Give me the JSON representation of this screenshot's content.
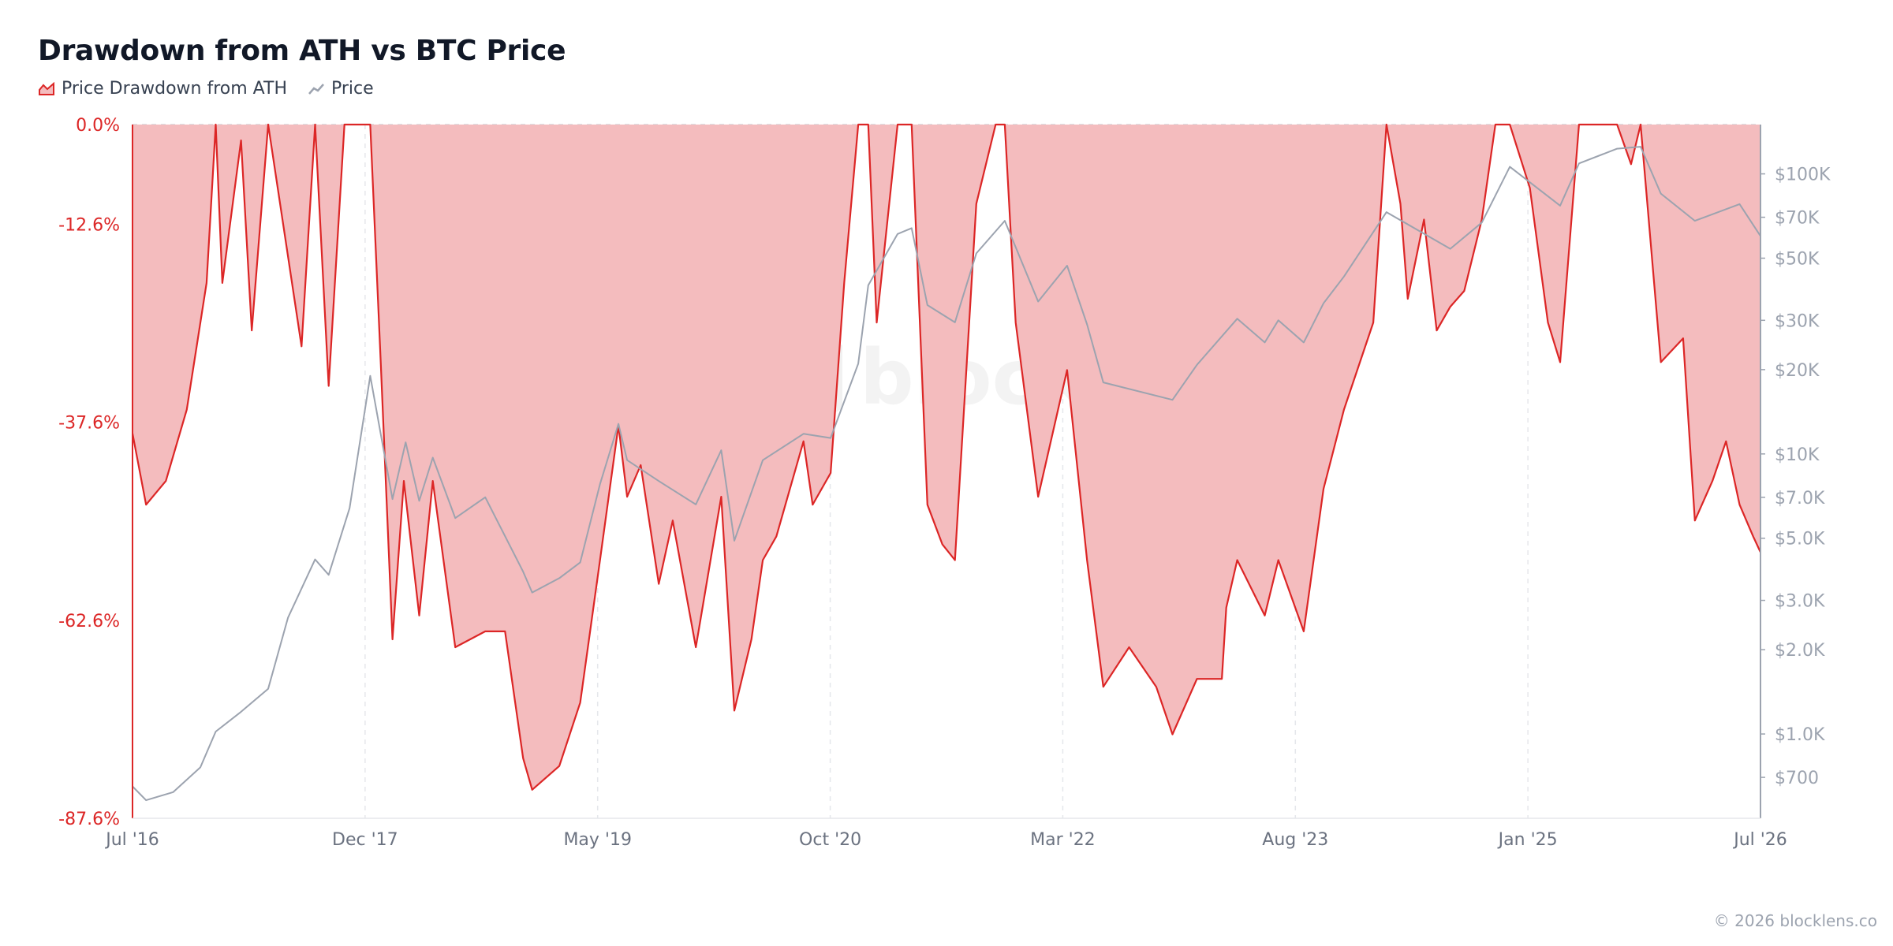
{
  "title": "Drawdown from ATH vs BTC Price",
  "legend": [
    {
      "label": "Price Drawdown from ATH",
      "icon": "area-chart-icon",
      "color": "#dc2626"
    },
    {
      "label": "Price",
      "icon": "line-chart-icon",
      "color": "#9ca3af"
    }
  ],
  "watermark": "blocklens",
  "footer": "© 2026 blocklens.co",
  "chart_data": {
    "type": "area",
    "x_axis": {
      "type": "date",
      "range": [
        "2016-07",
        "2026-07"
      ],
      "ticks": [
        "Jul '16",
        "Dec '17",
        "May '19",
        "Oct '20",
        "Mar '22",
        "Aug '23",
        "Jan '25",
        "Jul '26"
      ]
    },
    "y_left": {
      "label": "",
      "unit": "%",
      "range": [
        -87.6,
        0
      ],
      "ticks": [
        "0.0%",
        "-12.6%",
        "-37.6%",
        "-62.6%",
        "-87.6%"
      ],
      "tick_values": [
        0,
        -12.6,
        -37.6,
        -62.6,
        -87.6
      ]
    },
    "y_right": {
      "label": "",
      "scale": "log",
      "range": [
        500,
        150000
      ],
      "ticks": [
        "$100K",
        "$70K",
        "$50K",
        "$30K",
        "$20K",
        "$10K",
        "$7.0K",
        "$5.0K",
        "$3.0K",
        "$2.0K",
        "$1.0K",
        "$700"
      ],
      "tick_values": [
        100000,
        70000,
        50000,
        30000,
        20000,
        10000,
        7000,
        5000,
        3000,
        2000,
        1000,
        700
      ]
    },
    "grid": {
      "vertical": true,
      "horizontal": false
    },
    "series": [
      {
        "name": "Price Drawdown from ATH",
        "type": "area",
        "axis": "left",
        "color": "#dc2626",
        "fill": "#f4bcbe",
        "points": [
          [
            "2016-07-01",
            -39
          ],
          [
            "2016-08-01",
            -48
          ],
          [
            "2016-09-15",
            -45
          ],
          [
            "2016-11-01",
            -36
          ],
          [
            "2016-12-15",
            -20
          ],
          [
            "2017-01-05",
            0
          ],
          [
            "2017-01-20",
            -20
          ],
          [
            "2017-03-01",
            -2
          ],
          [
            "2017-03-25",
            -26
          ],
          [
            "2017-05-01",
            0
          ],
          [
            "2017-07-15",
            -28
          ],
          [
            "2017-08-15",
            0
          ],
          [
            "2017-09-15",
            -33
          ],
          [
            "2017-10-20",
            0
          ],
          [
            "2017-12-17",
            0
          ],
          [
            "2018-01-10",
            -30
          ],
          [
            "2018-02-06",
            -65
          ],
          [
            "2018-03-01",
            -45
          ],
          [
            "2018-04-05",
            -62
          ],
          [
            "2018-05-05",
            -45
          ],
          [
            "2018-06-25",
            -66
          ],
          [
            "2018-09-01",
            -64
          ],
          [
            "2018-10-15",
            -64
          ],
          [
            "2018-11-25",
            -80
          ],
          [
            "2018-12-15",
            -84
          ],
          [
            "2019-02-15",
            -81
          ],
          [
            "2019-04-01",
            -73
          ],
          [
            "2019-05-15",
            -55
          ],
          [
            "2019-06-26",
            -38
          ],
          [
            "2019-07-15",
            -47
          ],
          [
            "2019-08-15",
            -43
          ],
          [
            "2019-09-25",
            -58
          ],
          [
            "2019-10-26",
            -50
          ],
          [
            "2019-12-17",
            -66
          ],
          [
            "2020-02-13",
            -47
          ],
          [
            "2020-03-12",
            -74
          ],
          [
            "2020-04-20",
            -65
          ],
          [
            "2020-05-15",
            -55
          ],
          [
            "2020-06-15",
            -52
          ],
          [
            "2020-08-15",
            -40
          ],
          [
            "2020-09-05",
            -48
          ],
          [
            "2020-10-15",
            -44
          ],
          [
            "2020-11-15",
            -20
          ],
          [
            "2020-12-16",
            0
          ],
          [
            "2021-01-08",
            0
          ],
          [
            "2021-01-27",
            -25
          ],
          [
            "2021-03-13",
            0
          ],
          [
            "2021-04-14",
            0
          ],
          [
            "2021-05-19",
            -48
          ],
          [
            "2021-06-22",
            -53
          ],
          [
            "2021-07-20",
            -55
          ],
          [
            "2021-09-07",
            -10
          ],
          [
            "2021-10-20",
            0
          ],
          [
            "2021-11-10",
            0
          ],
          [
            "2021-12-04",
            -25
          ],
          [
            "2022-01-24",
            -47
          ],
          [
            "2022-03-28",
            -31
          ],
          [
            "2022-05-12",
            -55
          ],
          [
            "2022-06-18",
            -71
          ],
          [
            "2022-08-15",
            -66
          ],
          [
            "2022-10-15",
            -71
          ],
          [
            "2022-11-21",
            -77
          ],
          [
            "2023-01-15",
            -70
          ],
          [
            "2023-03-10",
            -70
          ],
          [
            "2023-03-20",
            -61
          ],
          [
            "2023-04-14",
            -55
          ],
          [
            "2023-06-15",
            -62
          ],
          [
            "2023-07-15",
            -55
          ],
          [
            "2023-09-11",
            -64
          ],
          [
            "2023-10-25",
            -46
          ],
          [
            "2023-12-10",
            -36
          ],
          [
            "2024-02-15",
            -25
          ],
          [
            "2024-03-14",
            0
          ],
          [
            "2024-04-15",
            -10
          ],
          [
            "2024-05-01",
            -22
          ],
          [
            "2024-06-07",
            -12
          ],
          [
            "2024-07-05",
            -26
          ],
          [
            "2024-08-05",
            -23
          ],
          [
            "2024-09-06",
            -21
          ],
          [
            "2024-10-15",
            -12
          ],
          [
            "2024-11-15",
            0
          ],
          [
            "2024-12-17",
            0
          ],
          [
            "2025-02-01",
            -8
          ],
          [
            "2025-03-11",
            -25
          ],
          [
            "2025-04-08",
            -30
          ],
          [
            "2025-05-20",
            0
          ],
          [
            "2025-08-14",
            0
          ],
          [
            "2025-09-15",
            -5
          ],
          [
            "2025-10-06",
            0
          ],
          [
            "2025-11-21",
            -30
          ],
          [
            "2026-01-10",
            -27
          ],
          [
            "2026-02-06",
            -50
          ],
          [
            "2026-03-15",
            -45
          ],
          [
            "2026-04-15",
            -40
          ],
          [
            "2026-05-15",
            -48
          ],
          [
            "2026-06-15",
            -52
          ],
          [
            "2026-07-01",
            -54
          ]
        ]
      },
      {
        "name": "Price",
        "type": "line",
        "axis": "right",
        "color": "#9ca3af",
        "scale": "log",
        "points": [
          [
            "2016-07-01",
            650
          ],
          [
            "2016-08-01",
            580
          ],
          [
            "2016-10-01",
            620
          ],
          [
            "2016-12-01",
            760
          ],
          [
            "2017-01-05",
            1020
          ],
          [
            "2017-03-01",
            1200
          ],
          [
            "2017-05-01",
            1450
          ],
          [
            "2017-06-15",
            2600
          ],
          [
            "2017-08-15",
            4200
          ],
          [
            "2017-09-15",
            3700
          ],
          [
            "2017-11-01",
            6400
          ],
          [
            "2017-12-17",
            19000
          ],
          [
            "2018-02-06",
            6900
          ],
          [
            "2018-03-05",
            11000
          ],
          [
            "2018-04-05",
            6800
          ],
          [
            "2018-05-05",
            9700
          ],
          [
            "2018-06-25",
            5900
          ],
          [
            "2018-09-01",
            7000
          ],
          [
            "2018-11-25",
            3800
          ],
          [
            "2018-12-15",
            3200
          ],
          [
            "2019-02-15",
            3600
          ],
          [
            "2019-04-01",
            4100
          ],
          [
            "2019-05-15",
            7800
          ],
          [
            "2019-06-26",
            12800
          ],
          [
            "2019-07-15",
            9500
          ],
          [
            "2019-09-25",
            8000
          ],
          [
            "2019-12-17",
            6600
          ],
          [
            "2020-02-13",
            10300
          ],
          [
            "2020-03-12",
            4900
          ],
          [
            "2020-05-15",
            9500
          ],
          [
            "2020-08-15",
            11800
          ],
          [
            "2020-10-15",
            11400
          ],
          [
            "2020-12-16",
            21000
          ],
          [
            "2021-01-08",
            40000
          ],
          [
            "2021-03-13",
            61000
          ],
          [
            "2021-04-14",
            64000
          ],
          [
            "2021-05-19",
            34000
          ],
          [
            "2021-07-20",
            29500
          ],
          [
            "2021-09-07",
            52000
          ],
          [
            "2021-11-10",
            68000
          ],
          [
            "2022-01-24",
            35000
          ],
          [
            "2022-03-28",
            47000
          ],
          [
            "2022-05-12",
            29000
          ],
          [
            "2022-06-18",
            18000
          ],
          [
            "2022-11-21",
            15600
          ],
          [
            "2023-01-15",
            20800
          ],
          [
            "2023-04-14",
            30400
          ],
          [
            "2023-06-15",
            25000
          ],
          [
            "2023-07-15",
            30000
          ],
          [
            "2023-09-11",
            25000
          ],
          [
            "2023-10-25",
            34500
          ],
          [
            "2023-12-10",
            43000
          ],
          [
            "2024-03-14",
            73000
          ],
          [
            "2024-08-05",
            54000
          ],
          [
            "2024-10-15",
            67000
          ],
          [
            "2024-12-17",
            106000
          ],
          [
            "2025-04-08",
            77000
          ],
          [
            "2025-05-20",
            109000
          ],
          [
            "2025-08-14",
            123000
          ],
          [
            "2025-10-06",
            125000
          ],
          [
            "2025-11-21",
            85000
          ],
          [
            "2026-02-06",
            68000
          ],
          [
            "2026-05-15",
            78000
          ],
          [
            "2026-07-01",
            60000
          ]
        ]
      }
    ]
  }
}
